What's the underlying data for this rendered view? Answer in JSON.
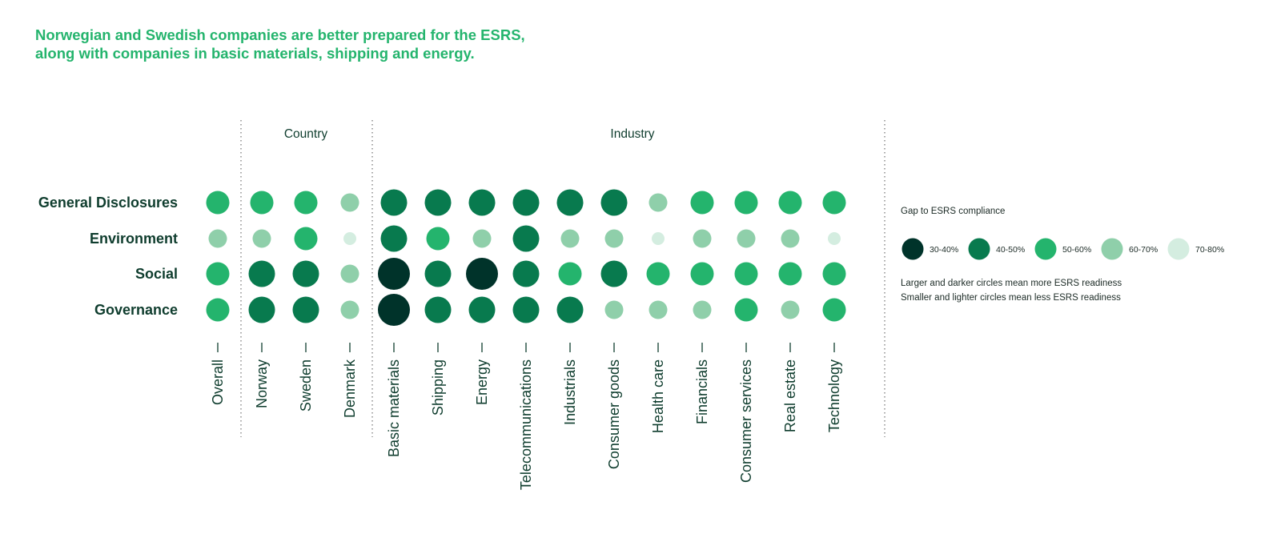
{
  "header": {
    "title_line1": "Norwegian and Swedish companies are better prepared for the ESRS,",
    "title_line2": "along with companies in basic materials, shipping and energy."
  },
  "chart_data": {
    "type": "bubble-matrix",
    "groups": [
      {
        "label": "",
        "columns": [
          "Overall"
        ]
      },
      {
        "label": "Country",
        "columns": [
          "Norway",
          "Sweden",
          "Denmark"
        ]
      },
      {
        "label": "Industry",
        "columns": [
          "Basic materials",
          "Shipping",
          "Energy",
          "Telecommunications",
          "Industrials",
          "Consumer goods",
          "Health care",
          "Financials",
          "Consumer services",
          "Real estate",
          "Technology"
        ]
      }
    ],
    "columns": [
      "Overall",
      "Norway",
      "Sweden",
      "Denmark",
      "Basic materials",
      "Shipping",
      "Energy",
      "Telecommunications",
      "Industrials",
      "Consumer goods",
      "Health care",
      "Financials",
      "Consumer services",
      "Real estate",
      "Technology"
    ],
    "rows": [
      "General Disclosures",
      "Environment",
      "Social",
      "Governance"
    ],
    "category_key": [
      "30-40%",
      "40-50%",
      "50-60%",
      "60-70%",
      "70-80%"
    ],
    "values": [
      [
        "50-60%",
        "50-60%",
        "50-60%",
        "60-70%",
        "40-50%",
        "40-50%",
        "40-50%",
        "40-50%",
        "40-50%",
        "40-50%",
        "60-70%",
        "50-60%",
        "50-60%",
        "50-60%",
        "50-60%"
      ],
      [
        "60-70%",
        "60-70%",
        "50-60%",
        "70-80%",
        "40-50%",
        "50-60%",
        "60-70%",
        "40-50%",
        "60-70%",
        "60-70%",
        "70-80%",
        "60-70%",
        "60-70%",
        "60-70%",
        "70-80%"
      ],
      [
        "50-60%",
        "40-50%",
        "40-50%",
        "60-70%",
        "30-40%",
        "40-50%",
        "30-40%",
        "40-50%",
        "50-60%",
        "40-50%",
        "50-60%",
        "50-60%",
        "50-60%",
        "50-60%",
        "50-60%"
      ],
      [
        "50-60%",
        "40-50%",
        "40-50%",
        "60-70%",
        "30-40%",
        "40-50%",
        "40-50%",
        "40-50%",
        "40-50%",
        "60-70%",
        "60-70%",
        "60-70%",
        "50-60%",
        "60-70%",
        "50-60%"
      ]
    ],
    "legend": {
      "title": "Gap to ESRS compliance",
      "items": [
        {
          "label": "30-40%",
          "color": "#00332a"
        },
        {
          "label": "40-50%",
          "color": "#087a4e"
        },
        {
          "label": "50-60%",
          "color": "#24b46d"
        },
        {
          "label": "60-70%",
          "color": "#8fcfaa"
        },
        {
          "label": "70-80%",
          "color": "#d4ede0"
        }
      ],
      "note_line1": "Larger and darker circles mean more ESRS readiness",
      "note_line2": "Smaller and lighter circles mean less ESRS readiness",
      "placement": "right"
    }
  }
}
